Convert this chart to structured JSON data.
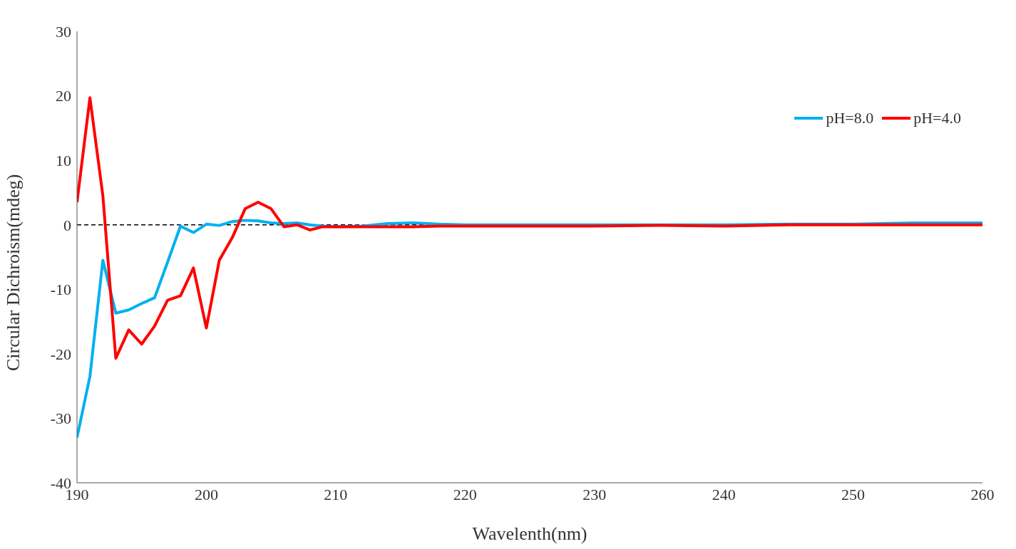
{
  "chart_data": {
    "type": "line",
    "xlabel": "Wavelenth(nm)",
    "ylabel": "Circular Dichroism(mdeg)",
    "xlim": [
      190,
      260
    ],
    "xticks": [
      190,
      200,
      210,
      220,
      230,
      240,
      250,
      260
    ],
    "ylim": [
      -40,
      30
    ],
    "yticks": [
      -40,
      -30,
      -20,
      -10,
      0,
      10,
      20,
      30
    ],
    "grid": false,
    "legend": "top right",
    "marker": "none",
    "line_style": "solid",
    "ref_lines": [
      {
        "axis": "y",
        "value": 0,
        "line_style": "dashed",
        "color": "#000000"
      }
    ],
    "x": [
      190,
      191,
      192,
      193,
      194,
      195,
      196,
      197,
      198,
      199,
      200,
      201,
      202,
      203,
      204,
      205,
      206,
      207,
      208,
      209,
      210,
      212,
      214,
      216,
      218,
      220,
      225,
      230,
      235,
      240,
      245,
      250,
      255,
      260
    ],
    "series": [
      {
        "name": "pH=8.0",
        "color": "#00b0f0",
        "values": [
          -33,
          -23.5,
          -5.5,
          -13.7,
          -13.2,
          -12.2,
          -11.3,
          -5.8,
          -0.2,
          -1.2,
          0.1,
          -0.1,
          0.5,
          0.7,
          0.6,
          0.3,
          0.2,
          0.3,
          0,
          -0.2,
          -0.3,
          -0.2,
          0.2,
          0.3,
          0.1,
          0,
          0,
          0,
          0,
          0,
          0.1,
          0.1,
          0.3,
          0.3
        ]
      },
      {
        "name": "pH=4.0",
        "color": "#ff0000",
        "values": [
          3.5,
          19.7,
          4.5,
          -20.7,
          -16.3,
          -18.5,
          -15.7,
          -11.7,
          -11,
          -6.7,
          -16,
          -5.5,
          -2,
          2.5,
          3.5,
          2.5,
          -0.3,
          0,
          -0.8,
          -0.3,
          -0.3,
          -0.3,
          -0.3,
          -0.3,
          -0.2,
          -0.2,
          -0.2,
          -0.2,
          -0.1,
          -0.2,
          0,
          0,
          0,
          0
        ]
      }
    ]
  }
}
